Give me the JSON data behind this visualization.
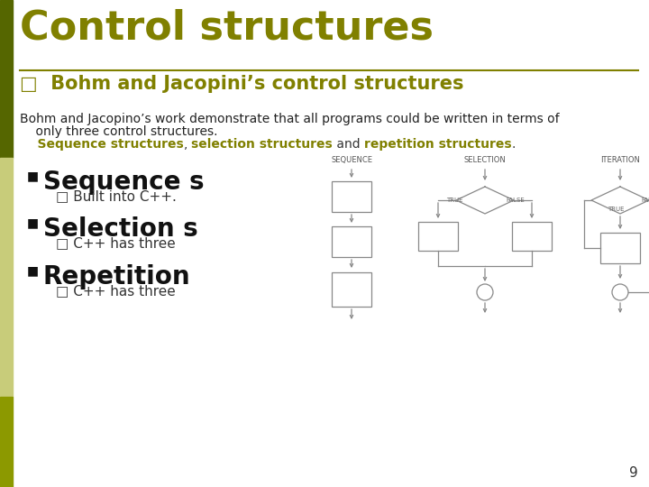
{
  "title": "Control structures",
  "title_color": "#808000",
  "title_fontsize": 32,
  "subtitle": "Bohm and Jacopini’s control structures",
  "subtitle_color": "#808000",
  "subtitle_fontsize": 15,
  "left_bar_colors": [
    "#556600",
    "#c8cc7a",
    "#8c9900"
  ],
  "body_line1": "Bohm and Jacopino’s work demonstrate that all programs could be written in terms of",
  "body_line2": "    only three control structures.",
  "body_line3_parts": [
    {
      "text": "    Sequence structures",
      "color": "#808000",
      "bold": true
    },
    {
      "text": ", ",
      "color": "#333333",
      "bold": false
    },
    {
      "text": "selection structures",
      "color": "#808000",
      "bold": true
    },
    {
      "text": " and ",
      "color": "#333333",
      "bold": false
    },
    {
      "text": "repetition structures",
      "color": "#808000",
      "bold": true
    },
    {
      "text": ".",
      "color": "#333333",
      "bold": false
    }
  ],
  "bullet1_text": "Sequence s",
  "bullet1_sub": "Built into C++.",
  "bullet2_text": "Selection s",
  "bullet2_sub": "C++ has three",
  "bullet3_text": "Repetition",
  "bullet3_sub": "C++ has three",
  "bullet_color": "#111111",
  "bullet_fontsize": 20,
  "sub_bullet_color": "#333333",
  "sub_bullet_fontsize": 11,
  "body_fontsize": 10,
  "diagram_line_color": "#888888",
  "background_color": "#ffffff",
  "separator_color": "#808000",
  "page_number": "9",
  "seq_label": "SEQUENCE",
  "sel_label": "SELECTION",
  "iter_label": "ITERATION"
}
